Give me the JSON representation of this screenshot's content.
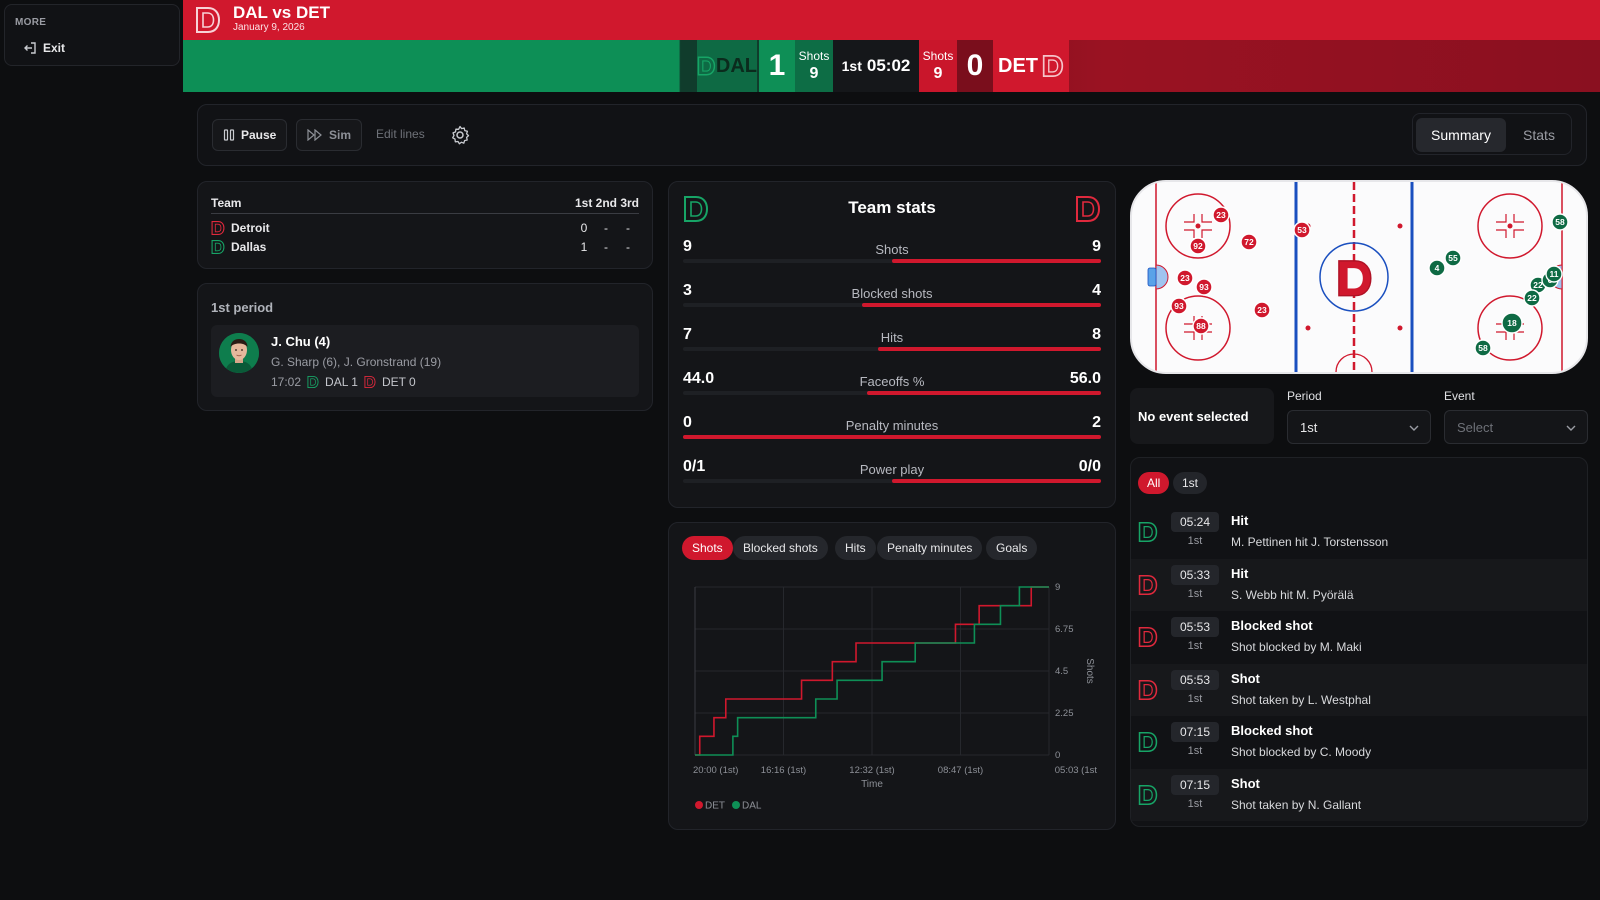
{
  "sidebar": {
    "section_label": "MORE",
    "exit_label": "Exit"
  },
  "header": {
    "title": "DAL vs DET",
    "date": "January 9, 2026"
  },
  "scoreboard": {
    "away_abbr": "DAL",
    "away_score": "1",
    "away_shots_label": "Shots",
    "away_shots": "9",
    "period": "1st",
    "clock": "05:02",
    "home_shots_label": "Shots",
    "home_shots": "9",
    "home_score": "0",
    "home_abbr": "DET"
  },
  "toolbar": {
    "pause_label": "Pause",
    "sim_label": "Sim",
    "edit_lines_label": "Edit lines",
    "tabs": [
      {
        "label": "Summary",
        "active": true
      },
      {
        "label": "Stats",
        "active": false
      }
    ]
  },
  "period_table": {
    "team_header": "Team",
    "period_headers": "1st 2nd 3rd",
    "rows": [
      {
        "team": "Detroit",
        "p1": "0",
        "p2": "-",
        "p3": "-"
      },
      {
        "team": "Dallas",
        "p1": "1",
        "p2": "-",
        "p3": "-"
      }
    ]
  },
  "goals": {
    "title": "1st period",
    "items": [
      {
        "scorer": "J. Chu (4)",
        "assists": "G. Sharp (6), J. Gronstrand (19)",
        "time": "17:02",
        "dal_score": "DAL 1",
        "det_score": "DET 0"
      }
    ]
  },
  "team_stats": {
    "title": "Team stats",
    "rows": [
      {
        "label": "Shots",
        "left": "9",
        "right": "9",
        "right_share": 0.5
      },
      {
        "label": "Blocked shots",
        "left": "3",
        "right": "4",
        "right_share": 0.571
      },
      {
        "label": "Hits",
        "left": "7",
        "right": "8",
        "right_share": 0.533
      },
      {
        "label": "Faceoffs %",
        "left": "44.0",
        "right": "56.0",
        "right_share": 0.56
      },
      {
        "label": "Penalty minutes",
        "left": "0",
        "right": "2",
        "right_share": 1.0
      },
      {
        "label": "Power play",
        "left": "0/1",
        "right": "0/0",
        "right_share": 0.5
      }
    ]
  },
  "chart_tabs": [
    {
      "label": "Shots",
      "active": true
    },
    {
      "label": "Blocked shots",
      "active": false
    },
    {
      "label": "Hits",
      "active": false
    },
    {
      "label": "Penalty minutes",
      "active": false
    },
    {
      "label": "Goals",
      "active": false
    }
  ],
  "chart_data": {
    "type": "line",
    "xlabel": "Time",
    "ylabel": "Shots",
    "x_ticks": [
      "20:00 (1st)",
      "16:16 (1st)",
      "12:32 (1st)",
      "08:47 (1st)",
      "05:03 (1st"
    ],
    "y_ticks": [
      "0",
      "2.25",
      "4.5",
      "6.75",
      "9"
    ],
    "ylim": [
      0,
      9
    ],
    "x_range_minutes_elapsed": [
      0,
      14.95
    ],
    "step_style": "step-after",
    "series": [
      {
        "name": "DET",
        "color": "#d0182d",
        "points": [
          [
            0,
            0
          ],
          [
            0.2,
            1
          ],
          [
            0.8,
            2
          ],
          [
            1.3,
            3
          ],
          [
            2.4,
            3
          ],
          [
            3.6,
            3
          ],
          [
            4.5,
            4
          ],
          [
            5.8,
            5
          ],
          [
            6.8,
            6
          ],
          [
            9.0,
            6
          ],
          [
            11.0,
            7
          ],
          [
            12.0,
            8
          ],
          [
            14.2,
            9
          ],
          [
            14.95,
            9
          ]
        ]
      },
      {
        "name": "DAL",
        "color": "#0e8f56",
        "points": [
          [
            0,
            0
          ],
          [
            1.6,
            1
          ],
          [
            1.8,
            2
          ],
          [
            3.2,
            2
          ],
          [
            5.1,
            3
          ],
          [
            6.0,
            4
          ],
          [
            7.9,
            5
          ],
          [
            9.3,
            6
          ],
          [
            11.8,
            7
          ],
          [
            12.9,
            8
          ],
          [
            13.7,
            9
          ],
          [
            14.95,
            9
          ]
        ]
      }
    ],
    "legend_position": "bottom-left",
    "grid": true
  },
  "rink": {
    "center_logo": "D",
    "home_players": [
      "23",
      "92",
      "72",
      "53",
      "23",
      "93",
      "93",
      "88",
      "23"
    ],
    "away_players": [
      "58",
      "55",
      "4",
      "22",
      "22",
      "6",
      "11",
      "18",
      "58"
    ]
  },
  "filters": {
    "no_event_text": "No event selected",
    "period_label": "Period",
    "period_value": "1st",
    "event_label": "Event",
    "event_placeholder": "Select"
  },
  "events": {
    "filter_chips": [
      {
        "label": "All",
        "active": true
      },
      {
        "label": "1st",
        "active": false
      }
    ],
    "items": [
      {
        "team": "DAL",
        "time": "05:24",
        "period": "1st",
        "type": "Hit",
        "desc": "M. Pettinen hit J. Torstensson"
      },
      {
        "team": "DET",
        "time": "05:33",
        "period": "1st",
        "type": "Hit",
        "desc": "S. Webb hit M. Pyörälä"
      },
      {
        "team": "DET",
        "time": "05:53",
        "period": "1st",
        "type": "Blocked shot",
        "desc": "Shot blocked by M. Maki"
      },
      {
        "team": "DET",
        "time": "05:53",
        "period": "1st",
        "type": "Shot",
        "desc": "Shot taken by L. Westphal"
      },
      {
        "team": "DAL",
        "time": "07:15",
        "period": "1st",
        "type": "Blocked shot",
        "desc": "Shot blocked by C. Moody"
      },
      {
        "team": "DAL",
        "time": "07:15",
        "period": "1st",
        "type": "Shot",
        "desc": "Shot taken by N. Gallant"
      }
    ]
  },
  "colors": {
    "det_red": "#d0182d",
    "dal_green": "#0e8f56",
    "background": "#0d0e10"
  }
}
